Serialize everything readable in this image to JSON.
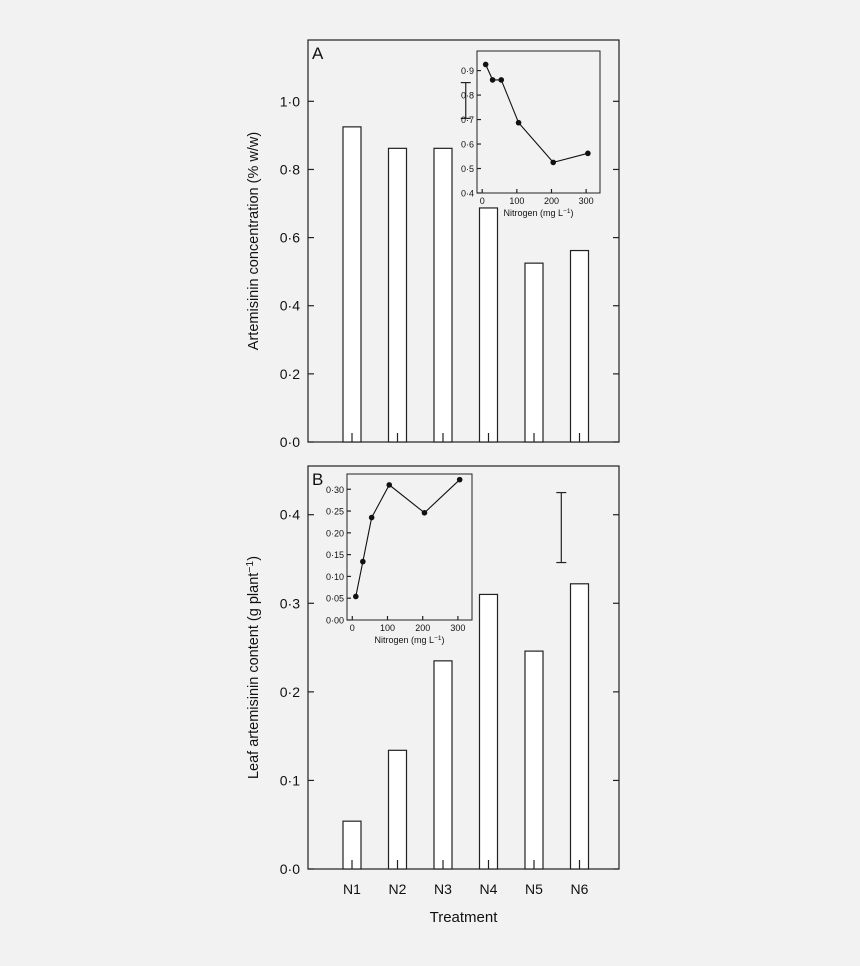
{
  "chart_data": [
    {
      "panel_label": "A",
      "type": "bar",
      "categories": [
        "N1",
        "N2",
        "N3",
        "N4",
        "N5",
        "N6"
      ],
      "values": [
        0.925,
        0.862,
        0.862,
        0.687,
        0.525,
        0.562
      ],
      "ylabel": "Artemisinin concentration (% w/w)",
      "ylim": [
        0.0,
        1.18
      ],
      "yticks": [
        0.0,
        0.2,
        0.4,
        0.6,
        0.8,
        1.0
      ],
      "ytick_labels": [
        "0·0",
        "0·2",
        "0·4",
        "0·6",
        "0·8",
        "1·0"
      ],
      "error_bar": {
        "category_position": 2.5,
        "low": 0.95,
        "high": 1.055
      },
      "inset": {
        "type": "line",
        "xlabel": "Nitrogen (mg L",
        "xlabel_sup": "−1",
        "xlabel_close": ")",
        "xlim": [
          -15,
          340
        ],
        "ylim": [
          0.4,
          0.98
        ],
        "xticks": [
          0,
          100,
          200,
          300
        ],
        "xtick_labels": [
          "0",
          "100",
          "200",
          "300"
        ],
        "yticks": [
          0.4,
          0.5,
          0.6,
          0.7,
          0.8,
          0.9
        ],
        "ytick_labels": [
          "0·4",
          "0·5",
          "0·6",
          "0·7",
          "0·8",
          "0·9"
        ],
        "x": [
          10,
          30,
          55,
          105,
          205,
          305
        ],
        "y": [
          0.925,
          0.862,
          0.862,
          0.687,
          0.525,
          0.562
        ]
      }
    },
    {
      "panel_label": "B",
      "type": "bar",
      "categories": [
        "N1",
        "N2",
        "N3",
        "N4",
        "N5",
        "N6"
      ],
      "values": [
        0.054,
        0.134,
        0.235,
        0.31,
        0.246,
        0.322
      ],
      "xlabel": "Treatment",
      "ylabel": "Leaf artemisinin content (g plant",
      "ylabel_sup": "−1",
      "ylabel_close": ")",
      "ylim": [
        0.0,
        0.455
      ],
      "yticks": [
        0.0,
        0.1,
        0.2,
        0.3,
        0.4
      ],
      "ytick_labels": [
        "0·0",
        "0·1",
        "0·2",
        "0·3",
        "0·4"
      ],
      "error_bar": {
        "category_position": 4.6,
        "low": 0.346,
        "high": 0.425
      },
      "inset": {
        "type": "line",
        "xlabel": "Nitrogen (mg L",
        "xlabel_sup": "−1",
        "xlabel_close": ")",
        "xlim": [
          -15,
          340
        ],
        "ylim": [
          0.0,
          0.335
        ],
        "xticks": [
          0,
          100,
          200,
          300
        ],
        "xtick_labels": [
          "0",
          "100",
          "200",
          "300"
        ],
        "yticks": [
          0.0,
          0.05,
          0.1,
          0.15,
          0.2,
          0.25,
          0.3
        ],
        "ytick_labels": [
          "0·00",
          "0·05",
          "0·10",
          "0·15",
          "0·20",
          "0·25",
          "0·30"
        ],
        "x": [
          10,
          30,
          55,
          105,
          205,
          305
        ],
        "y": [
          0.054,
          0.134,
          0.235,
          0.31,
          0.246,
          0.322
        ]
      }
    }
  ]
}
